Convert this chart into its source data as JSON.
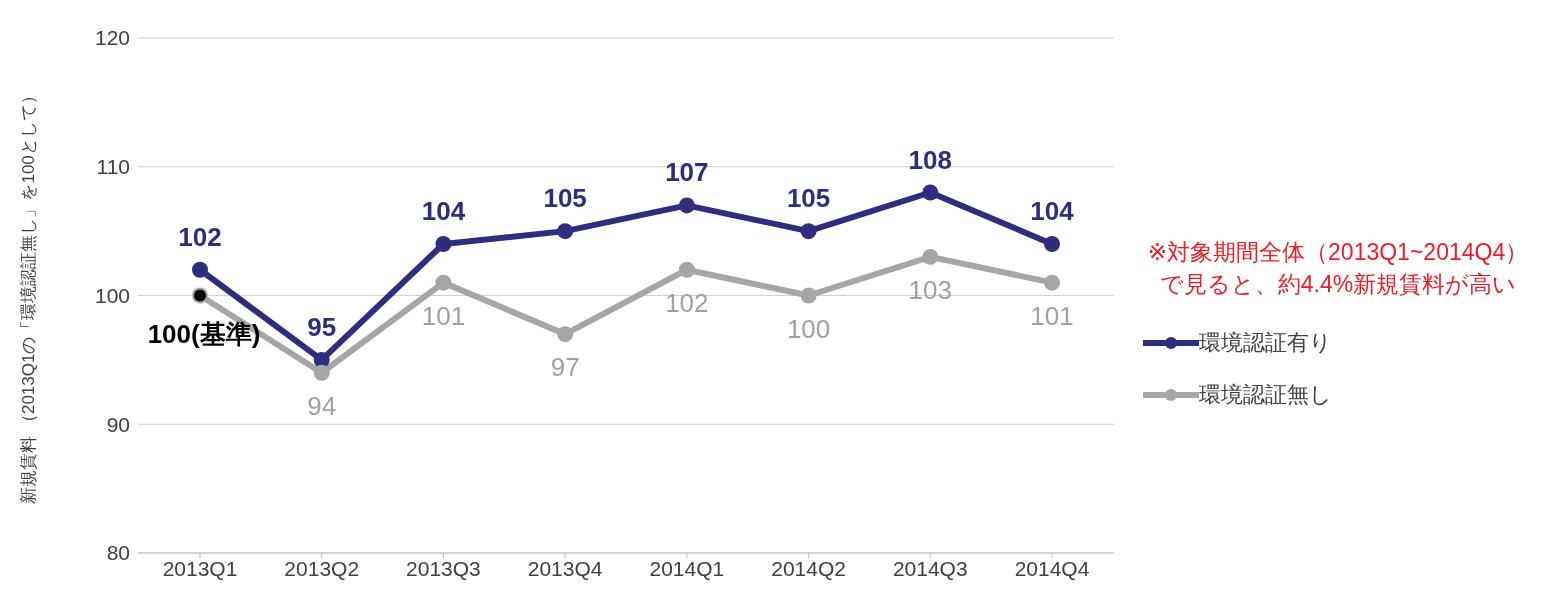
{
  "chart_data": {
    "type": "line",
    "ylabel": "新規賃料 （2013Q1の「環境認証無し」を100として）",
    "categories": [
      "2013Q1",
      "2013Q2",
      "2013Q3",
      "2013Q4",
      "2014Q1",
      "2014Q2",
      "2014Q3",
      "2014Q4"
    ],
    "series": [
      {
        "name": "環境認証有り",
        "color": "#2e2e7e",
        "values": [
          102,
          95,
          104,
          105,
          107,
          105,
          108,
          104
        ],
        "value_labels": [
          "102",
          "95",
          "104",
          "105",
          "107",
          "105",
          "108",
          "104"
        ]
      },
      {
        "name": "環境認証無し",
        "color": "#a6a6a6",
        "values": [
          100,
          94,
          101,
          97,
          102,
          100,
          103,
          101
        ],
        "value_labels": [
          null,
          "94",
          "101",
          "97",
          "102",
          "100",
          "103",
          "101"
        ]
      },
      {
        "type": "scatter",
        "color": "#000000",
        "values": [
          100,
          null,
          null,
          null,
          null,
          null,
          null,
          null
        ],
        "value_labels": [
          "100(基準)",
          null,
          null,
          null,
          null,
          null,
          null,
          null
        ]
      }
    ],
    "ylim": [
      80,
      120
    ],
    "yticks": [
      80,
      90,
      100,
      110,
      120
    ],
    "grid": "y",
    "legend": "right",
    "marker": "circle",
    "annotations": [
      "※対象期間全体（2013Q1~2014Q4）",
      "で見ると、約4.4%新規賃料が高い"
    ]
  }
}
